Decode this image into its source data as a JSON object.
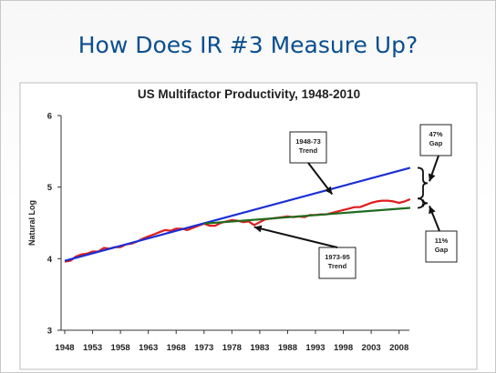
{
  "slide": {
    "title": "How Does IR #3 Measure Up?"
  },
  "colors": {
    "title_blue": "#0b4f8f",
    "actual": "#e01c1c",
    "trend_1948_73": "#1a2fd6",
    "trend_1973_95": "#1f6b1f"
  },
  "chart_data": {
    "type": "line",
    "title": "US Multifactor Productivity, 1948-2010",
    "xlabel": "",
    "ylabel": "Natural Log",
    "xlim": [
      1948,
      2011
    ],
    "ylim": [
      3,
      6
    ],
    "x_ticks": [
      "1948",
      "1953",
      "1958",
      "1963",
      "1968",
      "1973",
      "1978",
      "1983",
      "1988",
      "1993",
      "1998",
      "2003",
      "2008"
    ],
    "y_ticks": [
      "3",
      "4",
      "5",
      "6"
    ],
    "grid": false,
    "series": [
      {
        "color": "#e01c1c",
        "x": [
          1948,
          1949,
          1950,
          1951,
          1952,
          1953,
          1954,
          1955,
          1956,
          1957,
          1958,
          1959,
          1960,
          1961,
          1962,
          1963,
          1964,
          1965,
          1966,
          1967,
          1968,
          1969,
          1970,
          1971,
          1972,
          1973,
          1974,
          1975,
          1976,
          1977,
          1978,
          1979,
          1980,
          1981,
          1982,
          1983,
          1984,
          1985,
          1986,
          1987,
          1988,
          1989,
          1990,
          1991,
          1992,
          1993,
          1994,
          1995,
          1996,
          1997,
          1998,
          1999,
          2000,
          2001,
          2002,
          2003,
          2004,
          2005,
          2006,
          2007,
          2008,
          2009,
          2010
        ],
        "y": [
          3.96,
          3.97,
          4.03,
          4.06,
          4.07,
          4.1,
          4.1,
          4.15,
          4.14,
          4.16,
          4.16,
          4.2,
          4.21,
          4.24,
          4.28,
          4.31,
          4.34,
          4.37,
          4.4,
          4.39,
          4.42,
          4.42,
          4.4,
          4.43,
          4.46,
          4.49,
          4.46,
          4.46,
          4.5,
          4.52,
          4.54,
          4.53,
          4.51,
          4.52,
          4.47,
          4.51,
          4.55,
          4.56,
          4.57,
          4.58,
          4.59,
          4.58,
          4.59,
          4.58,
          4.61,
          4.61,
          4.62,
          4.62,
          4.64,
          4.66,
          4.68,
          4.7,
          4.72,
          4.72,
          4.75,
          4.78,
          4.8,
          4.81,
          4.81,
          4.8,
          4.78,
          4.8,
          4.83
        ]
      },
      {
        "name": "1948-73 Trend",
        "color": "#1a2fd6",
        "x": [
          1948,
          2010
        ],
        "y": [
          3.97,
          5.27
        ]
      },
      {
        "name": "1973-95 Trend",
        "color": "#1f6b1f",
        "x": [
          1973,
          2010
        ],
        "y": [
          4.49,
          4.71
        ]
      }
    ],
    "annotations": [
      {
        "label": "1948-73\nTrend",
        "points_to": "1948-73 Trend"
      },
      {
        "label": "1973-95\nTrend",
        "points_to": "1973-95 Trend"
      },
      {
        "label": "47%\nGap",
        "brace": [
          4.84,
          5.27
        ]
      },
      {
        "label": "11%\nGap",
        "brace": [
          4.71,
          4.84
        ]
      }
    ]
  }
}
